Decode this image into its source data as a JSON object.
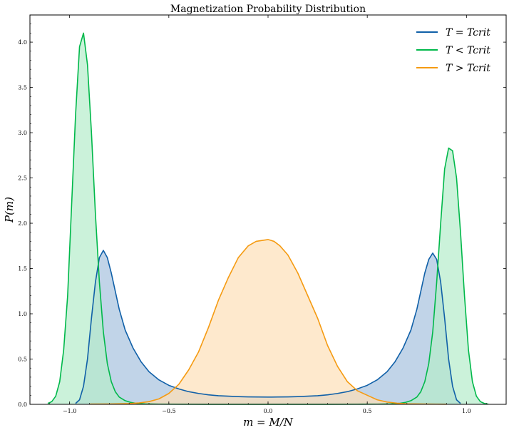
{
  "chart_data": {
    "type": "area",
    "title": "Magnetization Probability Distribution",
    "xlabel": "m = M/N",
    "ylabel": "P(m)",
    "xlim": [
      -1.2,
      1.2
    ],
    "ylim": [
      0,
      4.3
    ],
    "x_ticks": [
      -1.0,
      -0.5,
      0.0,
      0.5,
      1.0
    ],
    "x_tick_labels": [
      "−1.0",
      "−0.5",
      "0.0",
      "0.5",
      "1.0"
    ],
    "y_ticks": [
      0,
      0.5,
      1.0,
      1.5,
      2.0,
      2.5,
      3.0,
      3.5,
      4.0
    ],
    "y_tick_labels": [
      "0.0",
      "0.5",
      "1.0",
      "1.5",
      "2.0",
      "2.5",
      "3.0",
      "3.5",
      "4.0"
    ],
    "grid": false,
    "legend_position": "top-right",
    "series": [
      {
        "name": "T = Tcrit",
        "color": "#1060a8",
        "fill_color": "#a7c2de",
        "x": [
          -0.97,
          -0.95,
          -0.93,
          -0.91,
          -0.89,
          -0.87,
          -0.85,
          -0.83,
          -0.81,
          -0.79,
          -0.77,
          -0.75,
          -0.72,
          -0.68,
          -0.64,
          -0.6,
          -0.55,
          -0.5,
          -0.45,
          -0.4,
          -0.35,
          -0.3,
          -0.25,
          -0.2,
          -0.15,
          -0.1,
          -0.05,
          0.0,
          0.05,
          0.1,
          0.15,
          0.2,
          0.25,
          0.3,
          0.35,
          0.4,
          0.45,
          0.5,
          0.55,
          0.6,
          0.64,
          0.68,
          0.72,
          0.75,
          0.77,
          0.79,
          0.81,
          0.83,
          0.85,
          0.87,
          0.89,
          0.91,
          0.93,
          0.95,
          0.97
        ],
        "y": [
          0.01,
          0.05,
          0.2,
          0.5,
          0.95,
          1.35,
          1.62,
          1.7,
          1.62,
          1.45,
          1.25,
          1.05,
          0.82,
          0.62,
          0.47,
          0.36,
          0.27,
          0.21,
          0.17,
          0.14,
          0.12,
          0.105,
          0.095,
          0.09,
          0.085,
          0.082,
          0.081,
          0.08,
          0.081,
          0.082,
          0.085,
          0.09,
          0.095,
          0.105,
          0.12,
          0.14,
          0.17,
          0.21,
          0.27,
          0.36,
          0.47,
          0.62,
          0.82,
          1.05,
          1.25,
          1.45,
          1.6,
          1.67,
          1.6,
          1.35,
          0.95,
          0.5,
          0.2,
          0.05,
          0.01
        ]
      },
      {
        "name": "T < Tcrit",
        "color": "#00b84a",
        "fill_color": "#b5eccb",
        "x": [
          -1.11,
          -1.09,
          -1.07,
          -1.05,
          -1.03,
          -1.01,
          -0.99,
          -0.97,
          -0.95,
          -0.93,
          -0.91,
          -0.89,
          -0.87,
          -0.85,
          -0.83,
          -0.81,
          -0.79,
          -0.77,
          -0.75,
          -0.72,
          -0.69,
          -0.66,
          -0.62,
          -0.55,
          -0.45,
          -0.3,
          0.0,
          0.3,
          0.45,
          0.55,
          0.62,
          0.66,
          0.69,
          0.72,
          0.75,
          0.77,
          0.79,
          0.81,
          0.83,
          0.85,
          0.87,
          0.89,
          0.91,
          0.93,
          0.95,
          0.97,
          0.99,
          1.01,
          1.03,
          1.05,
          1.07,
          1.09,
          1.11
        ],
        "y": [
          0.01,
          0.03,
          0.09,
          0.25,
          0.6,
          1.2,
          2.2,
          3.2,
          3.95,
          4.1,
          3.75,
          3.0,
          2.1,
          1.35,
          0.8,
          0.45,
          0.25,
          0.14,
          0.08,
          0.04,
          0.02,
          0.01,
          0.005,
          0.002,
          0.001,
          0.0,
          0.0,
          0.0,
          0.001,
          0.002,
          0.005,
          0.01,
          0.02,
          0.04,
          0.08,
          0.14,
          0.25,
          0.45,
          0.8,
          1.35,
          2.0,
          2.6,
          2.83,
          2.8,
          2.5,
          1.9,
          1.2,
          0.6,
          0.25,
          0.09,
          0.03,
          0.01,
          0.003
        ]
      },
      {
        "name": "T > Tcrit",
        "color": "#f59b12",
        "fill_color": "#fde0b8",
        "x": [
          -0.9,
          -0.8,
          -0.7,
          -0.65,
          -0.6,
          -0.55,
          -0.5,
          -0.45,
          -0.4,
          -0.35,
          -0.3,
          -0.25,
          -0.2,
          -0.15,
          -0.1,
          -0.06,
          -0.03,
          0.0,
          0.03,
          0.06,
          0.1,
          0.15,
          0.2,
          0.25,
          0.3,
          0.35,
          0.4,
          0.45,
          0.5,
          0.55,
          0.6,
          0.65,
          0.7,
          0.8,
          0.9
        ],
        "y": [
          0.002,
          0.004,
          0.008,
          0.015,
          0.03,
          0.06,
          0.12,
          0.22,
          0.38,
          0.58,
          0.85,
          1.15,
          1.4,
          1.62,
          1.75,
          1.8,
          1.81,
          1.82,
          1.8,
          1.75,
          1.65,
          1.45,
          1.2,
          0.95,
          0.65,
          0.42,
          0.25,
          0.15,
          0.1,
          0.05,
          0.025,
          0.012,
          0.006,
          0.003,
          0.001
        ]
      }
    ]
  }
}
